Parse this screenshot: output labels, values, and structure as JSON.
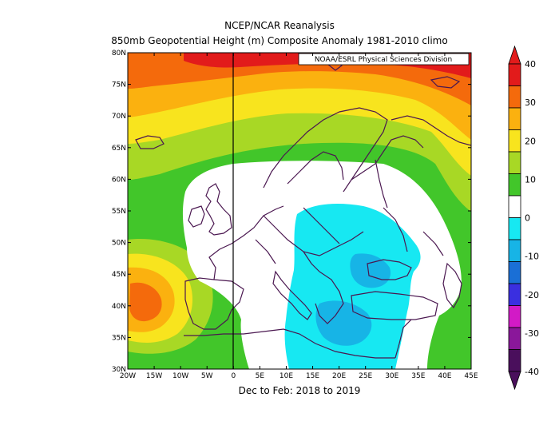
{
  "header": {
    "line1": "NCEP/NCAR Reanalysis",
    "line2": "850mb Geopotential Height (m) Composite Anomaly 1981-2010 climo",
    "source": "NOAA/ESRL Physical Sciences Division"
  },
  "period": "Dec to Feb: 2018 to 2019",
  "lat_labels": [
    "80N",
    "75N",
    "70N",
    "65N",
    "60N",
    "55N",
    "50N",
    "45N",
    "40N",
    "35N",
    "30N"
  ],
  "lon_labels": [
    "20W",
    "15W",
    "10W",
    "5W",
    "0",
    "5E",
    "10E",
    "15E",
    "20E",
    "25E",
    "30E",
    "35E",
    "40E",
    "45E"
  ],
  "colorbar": {
    "labels": [
      "40",
      "30",
      "20",
      "10",
      "0",
      "-10",
      "-20",
      "-30",
      "-40"
    ],
    "colors": [
      "#e21b1b",
      "#f46a0c",
      "#fbb10f",
      "#f8e41e",
      "#a8d825",
      "#42c62a",
      "#ffffff",
      "#17e8f2",
      "#17b4e6",
      "#1a6fd6",
      "#3a2fe0",
      "#d21ac6",
      "#8a179a",
      "#4a0f5c"
    ]
  },
  "map": {
    "lon_range": [
      -20,
      45
    ],
    "lat_range": [
      30,
      80
    ],
    "units": "m",
    "colors": {
      "red": "#e21b1b",
      "orange_red": "#f46a0c",
      "orange": "#fbb10f",
      "yellow": "#f8e41e",
      "yellow_green": "#a8d825",
      "green": "#42c62a",
      "white": "#ffffff",
      "cyan": "#17e8f2",
      "light_blue": "#17b4e6",
      "coast": "#4a1750"
    }
  }
}
